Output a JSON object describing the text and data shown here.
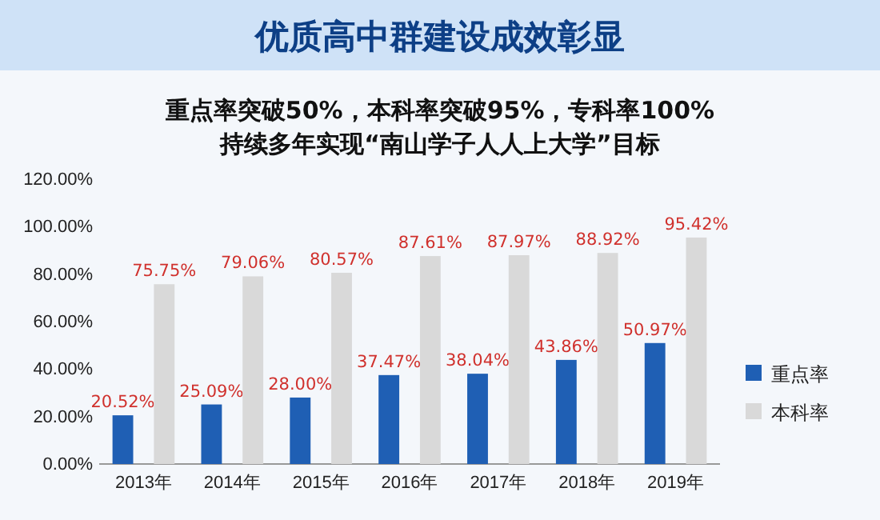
{
  "chart_data": {
    "type": "bar",
    "title": "优质高中群建设成效彰显",
    "subtitle": "重点率突破50%，本科率突破95%，专科率100%\n持续多年实现“南山学子人人上大学”目标",
    "categories": [
      "2013年",
      "2014年",
      "2015年",
      "2016年",
      "2017年",
      "2018年",
      "2019年"
    ],
    "series": [
      {
        "name": "重点率",
        "color": "#1f5fb4",
        "values": [
          20.52,
          25.09,
          28.0,
          37.47,
          38.04,
          43.86,
          50.97
        ],
        "value_labels": [
          "20.52%",
          "25.09%",
          "28.00%",
          "37.47%",
          "38.04%",
          "43.86%",
          "50.97%"
        ]
      },
      {
        "name": "本科率",
        "color": "#d9d9d9",
        "values": [
          75.75,
          79.06,
          80.57,
          87.61,
          87.97,
          88.92,
          95.42
        ],
        "value_labels": [
          "75.75%",
          "79.06%",
          "80.57%",
          "87.61%",
          "87.97%",
          "88.92%",
          "95.42%"
        ]
      }
    ],
    "ylim": [
      0,
      120
    ],
    "yticks": [
      {
        "value": 0,
        "label": "0.00%"
      },
      {
        "value": 20,
        "label": "20.00%"
      },
      {
        "value": 40,
        "label": "40.00%"
      },
      {
        "value": 60,
        "label": "60.00%"
      },
      {
        "value": 80,
        "label": "80.00%"
      },
      {
        "value": 100,
        "label": "100.00%"
      },
      {
        "value": 120,
        "label": "120.00%"
      }
    ],
    "legend": "right",
    "grid": false
  }
}
